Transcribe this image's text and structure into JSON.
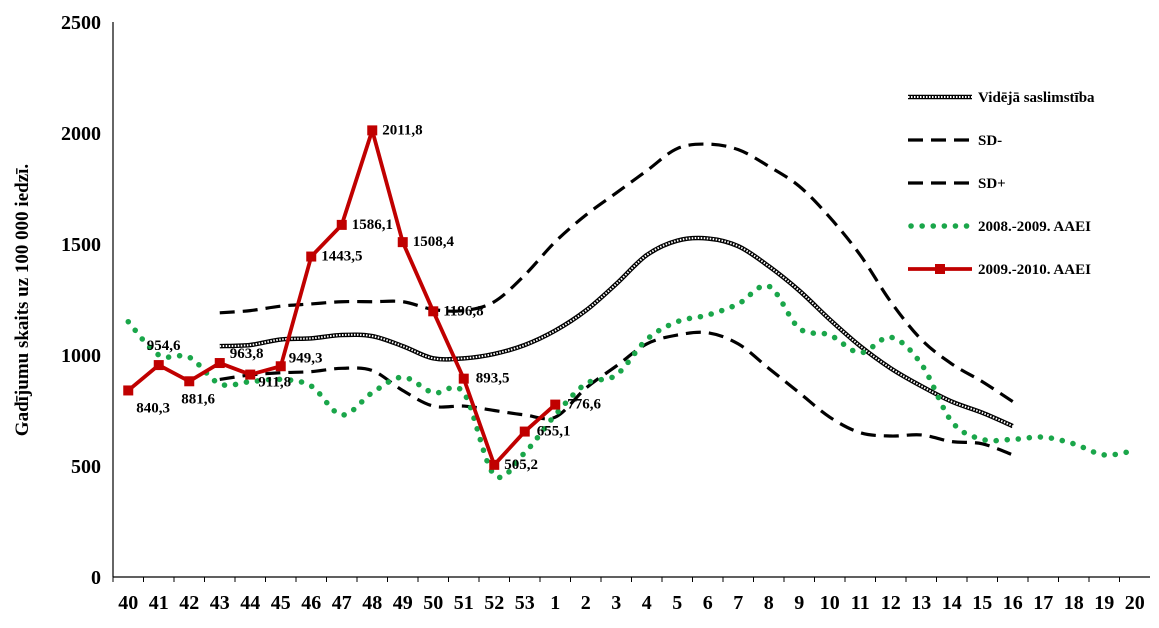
{
  "chart_data": {
    "type": "line",
    "ylabel": "Gadījumu skaits uz 100 000 iedzī.",
    "xlabel": "",
    "ylim": [
      0,
      2500
    ],
    "yticks": [
      0,
      500,
      1000,
      1500,
      2000,
      2500
    ],
    "categories": [
      "40",
      "41",
      "42",
      "43",
      "44",
      "45",
      "46",
      "47",
      "48",
      "49",
      "50",
      "51",
      "52",
      "53",
      "1",
      "2",
      "3",
      "4",
      "5",
      "6",
      "7",
      "8",
      "9",
      "10",
      "11",
      "12",
      "13",
      "14",
      "15",
      "16",
      "17",
      "18",
      "19",
      "20"
    ],
    "legend_position": "top-right",
    "grid": false,
    "series": [
      {
        "name": "Vidējā saslimstība",
        "style": "double",
        "color": "#000000",
        "values": [
          null,
          null,
          null,
          1040,
          1045,
          1070,
          1075,
          1090,
          1085,
          1040,
          985,
          985,
          1005,
          1045,
          1110,
          1200,
          1320,
          1450,
          1515,
          1525,
          1490,
          1400,
          1290,
          1160,
          1040,
          940,
          860,
          790,
          740,
          680,
          null,
          null,
          null,
          null
        ]
      },
      {
        "name": "SD-",
        "style": "dash",
        "color": "#000000",
        "values": [
          null,
          null,
          null,
          890,
          910,
          920,
          925,
          940,
          930,
          840,
          770,
          770,
          750,
          730,
          720,
          850,
          950,
          1050,
          1090,
          1100,
          1050,
          940,
          830,
          720,
          650,
          635,
          640,
          610,
          600,
          550,
          null,
          null,
          null,
          null
        ]
      },
      {
        "name": "SD+",
        "style": "dash",
        "color": "#000000",
        "values": [
          null,
          null,
          null,
          1190,
          1200,
          1220,
          1230,
          1240,
          1240,
          1240,
          1205,
          1200,
          1240,
          1360,
          1510,
          1630,
          1730,
          1830,
          1930,
          1950,
          1925,
          1850,
          1760,
          1620,
          1450,
          1240,
          1070,
          960,
          880,
          790,
          null,
          null,
          null,
          null
        ]
      },
      {
        "name": "2008.-2009. AAEI",
        "style": "dot",
        "color": "#1aa64a",
        "values": [
          1150,
          1000,
          990,
          870,
          880,
          890,
          860,
          730,
          830,
          900,
          830,
          830,
          460,
          560,
          730,
          870,
          910,
          1070,
          1150,
          1180,
          1230,
          1310,
          1120,
          1090,
          1010,
          1080,
          960,
          700,
          620,
          620,
          630,
          600,
          550,
          570
        ]
      },
      {
        "name": "2009.-2010. AAEI",
        "style": "solid-marker",
        "color": "#c00000",
        "values": [
          840.3,
          954.6,
          881.6,
          963.8,
          911.8,
          949.3,
          1443.5,
          1586.1,
          2011.8,
          1508.4,
          1196.8,
          893.5,
          505.2,
          655.1,
          776.6,
          null,
          null,
          null,
          null,
          null,
          null,
          null,
          null,
          null,
          null,
          null,
          null,
          null,
          null,
          null,
          null,
          null,
          null,
          null
        ],
        "data_labels": [
          "840,3",
          "954,6",
          "881,6",
          "963,8",
          "911,8",
          "949,3",
          "1443,5",
          "1586,1",
          "2011,8",
          "1508,4",
          "1196,8",
          "893,5",
          "505,2",
          "655,1",
          "776,6"
        ]
      }
    ]
  }
}
